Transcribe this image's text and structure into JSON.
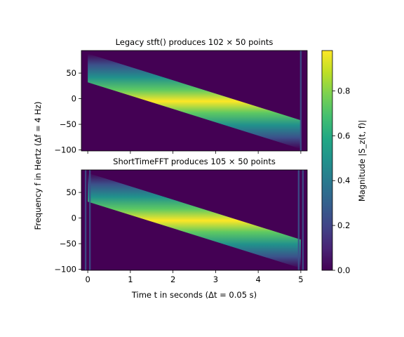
{
  "chart_data": [
    {
      "type": "heatmap",
      "title": "Legacy stft() produces 102 × 50 points",
      "xlim": [
        -0.15,
        5.15
      ],
      "ylim": [
        -102,
        94
      ],
      "yticks": [
        -100,
        -50,
        0,
        50
      ],
      "xticks": [
        0,
        1,
        2,
        3,
        4,
        5
      ],
      "ridge": {
        "t_start": 0.0,
        "f_start": 60,
        "t_end": 5.0,
        "f_end": -70
      },
      "edge_lines_t": [
        5.0
      ]
    },
    {
      "type": "heatmap",
      "title": "ShortTimeFFT produces 105 × 50 points",
      "xlim": [
        -0.15,
        5.15
      ],
      "ylim": [
        -102,
        94
      ],
      "yticks": [
        -100,
        -50,
        0,
        50
      ],
      "xticks": [
        0,
        1,
        2,
        3,
        4,
        5
      ],
      "ridge": {
        "t_start": 0.0,
        "f_start": 60,
        "t_end": 5.0,
        "f_end": -70
      },
      "edge_lines_t": [
        -0.05,
        0.05,
        4.95,
        5.05
      ]
    }
  ],
  "axes": {
    "ylabel": "Frequency f in Hertz (Δf = 4 Hz)",
    "xlabel": "Time t in seconds (Δt = 0.05 s)"
  },
  "colorbar": {
    "label": "Magnitude |S_z(t, f)|",
    "range": [
      0.0,
      0.98
    ],
    "ticks": [
      0.0,
      0.2,
      0.4,
      0.6,
      0.8
    ],
    "colormap": "viridis"
  }
}
